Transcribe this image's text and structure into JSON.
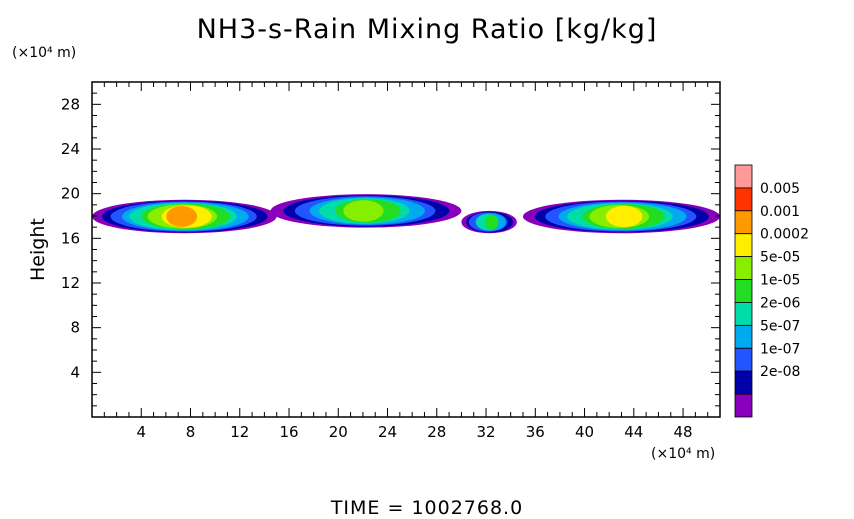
{
  "chart_data": {
    "type": "heatmap",
    "title": "NH3-s-Rain Mixing Ratio [kg/kg]",
    "ylabel": "Height",
    "y_unit": "(×10⁴ m)",
    "x_unit": "(×10⁴ m)",
    "xlim": [
      0,
      51
    ],
    "ylim": [
      0,
      30
    ],
    "x_ticks": [
      "4",
      "8",
      "12",
      "16",
      "20",
      "24",
      "28",
      "32",
      "36",
      "40",
      "44",
      "48"
    ],
    "y_ticks": [
      "4",
      "8",
      "12",
      "16",
      "20",
      "24",
      "28"
    ],
    "colorbar": {
      "labels": [
        "0.005",
        "0.001",
        "0.0002",
        "5e-05",
        "1e-05",
        "2e-06",
        "5e-07",
        "1e-07",
        "2e-08"
      ],
      "colors": [
        "#ff9999",
        "#ff3300",
        "#ff9900",
        "#ffee00",
        "#88ee00",
        "#22dd22",
        "#00ddaa",
        "#00aaee",
        "#2255ff",
        "#0000aa",
        "#8800bb"
      ]
    },
    "regions": [
      {
        "name": "left-cloud",
        "x_range": [
          0,
          15
        ],
        "y_range": [
          16.5,
          19.5
        ],
        "peak": "0.001"
      },
      {
        "name": "middle-cloud",
        "x_range": [
          14.5,
          30
        ],
        "y_range": [
          17,
          20
        ],
        "peak": "5e-05"
      },
      {
        "name": "small-cloud",
        "x_range": [
          30,
          34.5
        ],
        "y_range": [
          16.5,
          18.5
        ],
        "peak": "1e-05"
      },
      {
        "name": "right-cloud",
        "x_range": [
          35,
          51
        ],
        "y_range": [
          16.5,
          19.5
        ],
        "peak": "0.0002"
      }
    ],
    "time_label": "TIME",
    "time_value": "1002768.0"
  }
}
